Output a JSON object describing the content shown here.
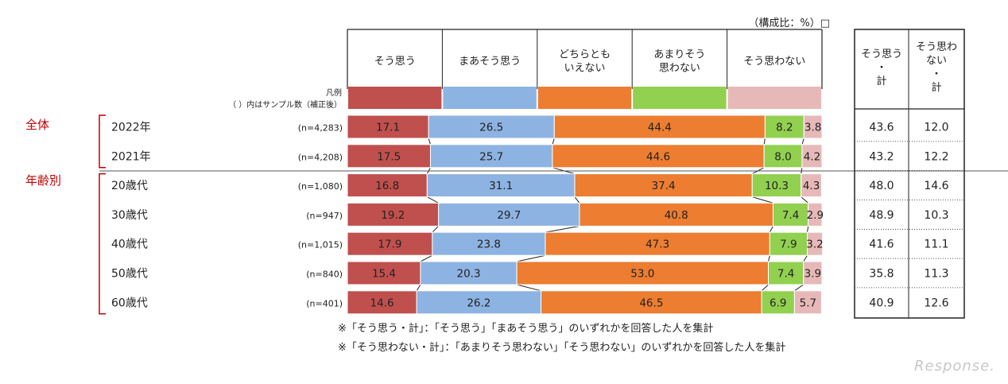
{
  "unit_note": "（構成比：%）□",
  "legend_label_1": "凡例",
  "legend_label_2": "（ ）内はサンプル数（補正後）",
  "groups": [
    {
      "label": "全体",
      "first_row": 0,
      "last_row": 1
    },
    {
      "label": "年齢別",
      "first_row": 2,
      "last_row": 6
    }
  ],
  "summary_headers": [
    [
      "そう思う",
      "・",
      "計"
    ],
    [
      "そう思わ",
      "ない",
      "・",
      "計"
    ]
  ],
  "footnotes": [
    "※「そう思う・計」：「そう思う」「まあそう思う」のいずれかを回答した人を集計",
    "※「そう思わない・計」：「あまりそう思わない」「そう思わない」のいずれかを回答した人を集計"
  ],
  "watermark": "Response.",
  "chart_data": {
    "type": "bar",
    "orientation": "horizontal",
    "stacked": true,
    "percent_scale": true,
    "series": [
      {
        "name": [
          "そう思う"
        ],
        "color": "#c0504d",
        "values": [
          17.1,
          17.5,
          16.8,
          19.2,
          17.9,
          15.4,
          14.6
        ],
        "labels": [
          "17.1",
          "17.5",
          "16.8",
          "19.2",
          "17.9",
          "15.4",
          "14.6"
        ]
      },
      {
        "name": [
          "まあそう思う"
        ],
        "color": "#8db3e2",
        "values": [
          26.5,
          25.7,
          31.1,
          29.7,
          23.8,
          20.3,
          26.2
        ],
        "labels": [
          "26.5",
          "25.7",
          "31.1",
          "29.7",
          "23.8",
          "20.3",
          "26.2"
        ]
      },
      {
        "name": [
          "どちらとも",
          "いえない"
        ],
        "color": "#ed7d31",
        "values": [
          44.4,
          44.6,
          37.4,
          40.8,
          47.3,
          53.0,
          46.5
        ],
        "labels": [
          "44.4",
          "44.6",
          "37.4",
          "40.8",
          "47.3",
          "53.0",
          "46.5"
        ]
      },
      {
        "name": [
          "あまりそう",
          "思わない"
        ],
        "color": "#92d050",
        "values": [
          8.2,
          8.0,
          10.3,
          7.4,
          7.9,
          7.4,
          6.9
        ],
        "labels": [
          "8.2",
          "8.0",
          "10.3",
          "7.4",
          "7.9",
          "7.4",
          "6.9"
        ]
      },
      {
        "name": [
          "そう思わない"
        ],
        "color": "#e6b9b8",
        "values": [
          3.8,
          4.2,
          4.3,
          2.9,
          3.2,
          3.9,
          5.7
        ],
        "labels": [
          "3.8",
          "4.2",
          "4.3",
          "2.9",
          "3.2",
          "3.9",
          "5.7"
        ]
      }
    ],
    "rows": [
      {
        "label": "2022年",
        "n": "(n=4,283)",
        "sum_agree": "43.6",
        "sum_disagree": "12.0"
      },
      {
        "label": "2021年",
        "n": "(n=4,208)",
        "sum_agree": "43.2",
        "sum_disagree": "12.2"
      },
      {
        "label": "20歳代",
        "n": "(n=1,080)",
        "sum_agree": "48.0",
        "sum_disagree": "14.6"
      },
      {
        "label": "30歳代",
        "n": "(n=947)",
        "sum_agree": "48.9",
        "sum_disagree": "10.3"
      },
      {
        "label": "40歳代",
        "n": "(n=1,015)",
        "sum_agree": "41.6",
        "sum_disagree": "11.1"
      },
      {
        "label": "50歳代",
        "n": "(n=840)",
        "sum_agree": "35.8",
        "sum_disagree": "11.3"
      },
      {
        "label": "60歳代",
        "n": "(n=401)",
        "sum_agree": "40.9",
        "sum_disagree": "12.6"
      }
    ]
  }
}
